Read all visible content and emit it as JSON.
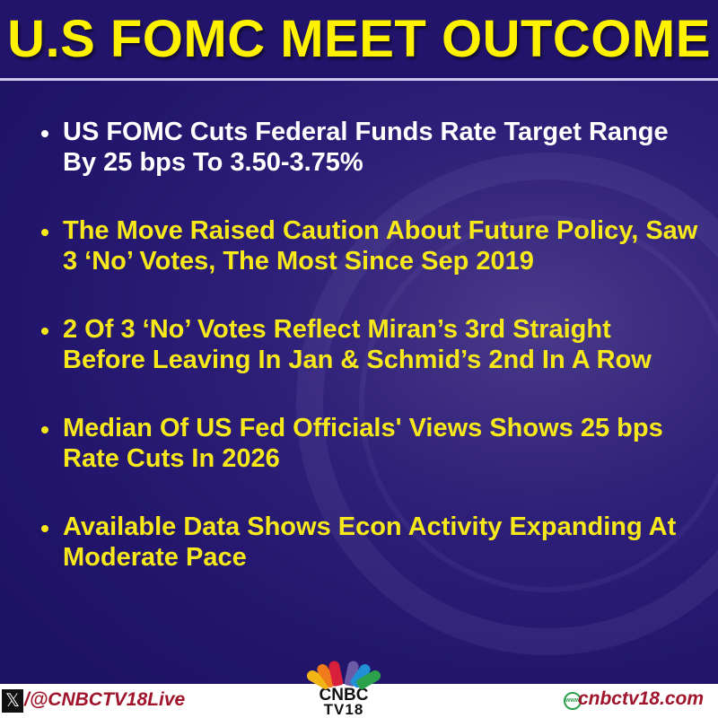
{
  "title": "U.S FOMC MEET OUTCOME",
  "bullets": [
    {
      "text": "US FOMC Cuts Federal Funds Rate Target Range By 25 bps To 3.50-3.75%",
      "color": "#ffffff"
    },
    {
      "text": "The Move Raised Caution About Future Policy, Saw 3 ‘No’ Votes, The Most Since Sep 2019",
      "color": "#f7e81a"
    },
    {
      "text": "2 Of 3 ‘No’ Votes Reflect Miran’s 3rd Straight Before Leaving In Jan & Schmid’s 2nd In A Row",
      "color": "#f7e81a"
    },
    {
      "text": "Median Of US Fed Officials' Views Shows 25 bps Rate Cuts In 2026",
      "color": "#f7e81a"
    },
    {
      "text": "Available Data Shows Econ Activity Expanding At Moderate Pace",
      "color": "#f7e81a"
    }
  ],
  "footer": {
    "x_icon": "x-logo-icon",
    "handle": "/@CNBCTV18Live",
    "logo_line1": "CNBC",
    "logo_line2": "TV18",
    "web_icon": "www-globe-icon",
    "website": "cnbctv18.com"
  },
  "colors": {
    "background": "#21146a",
    "title": "#fff200",
    "accent_red": "#a0142c"
  }
}
